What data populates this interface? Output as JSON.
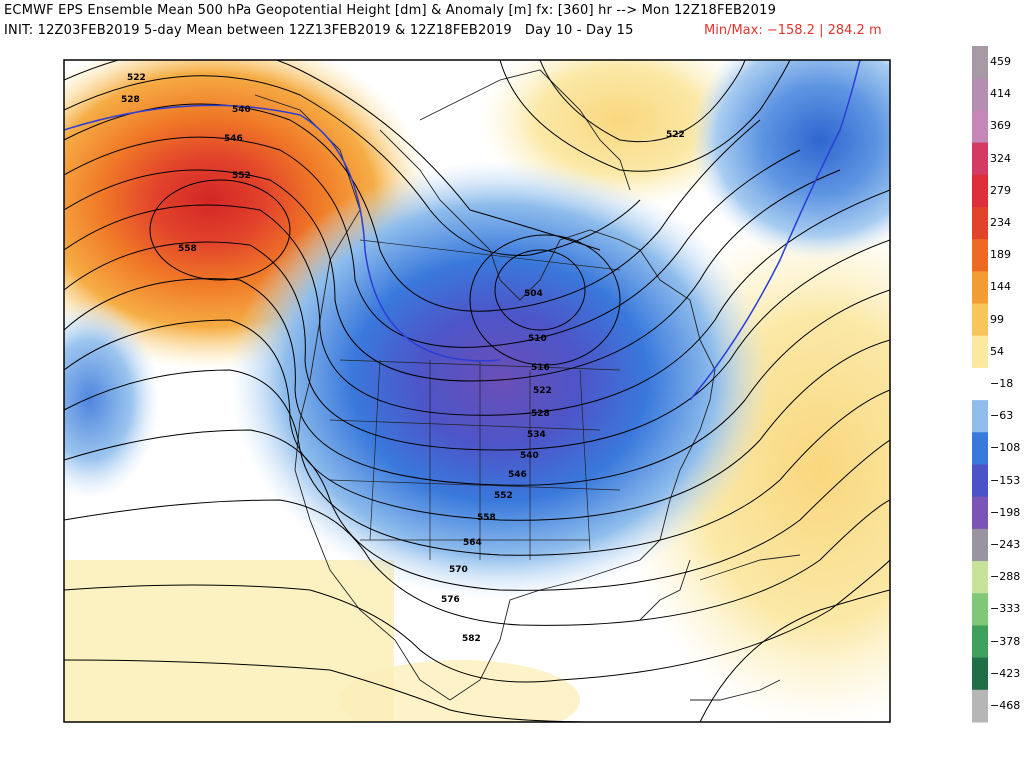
{
  "header": {
    "line1": "ECMWF EPS Ensemble Mean 500 hPa Geopotential Height [dm] & Anomaly [m] fx: [360] hr --> Mon 12Z18FEB2019",
    "line2": "INIT: 12Z03FEB2019 5-day Mean between 12Z13FEB2019 & 12Z18FEB2019   Day 10 - Day 15",
    "minmax": "Min/Max: −158.2 | 284.2 m"
  },
  "colorbar": {
    "labels": [
      "459",
      "414",
      "369",
      "324",
      "279",
      "234",
      "189",
      "144",
      "99",
      "54",
      "−18",
      "−63",
      "−108",
      "−153",
      "−198",
      "−243",
      "−288",
      "−333",
      "−378",
      "−423",
      "−468"
    ],
    "colors": [
      "#a79aa6",
      "#b58fb3",
      "#c586b8",
      "#d33b63",
      "#de2f3a",
      "#e2432b",
      "#ee6a24",
      "#f49c34",
      "#f8c45c",
      "#fbe9a0",
      "#ffffff",
      "#8fbdec",
      "#3a79dc",
      "#4a54c6",
      "#7b54b6",
      "#9a93a2",
      "#c7e39a",
      "#80c878",
      "#3f9f5c",
      "#1f6e47",
      "#b6b6b6"
    ]
  },
  "map": {
    "contour_labels": [
      {
        "text": "522"
      },
      {
        "text": "528"
      },
      {
        "text": "540"
      },
      {
        "text": "546"
      },
      {
        "text": "552"
      },
      {
        "text": "558"
      },
      {
        "text": "504"
      },
      {
        "text": "510"
      },
      {
        "text": "516"
      },
      {
        "text": "522"
      },
      {
        "text": "528"
      },
      {
        "text": "534"
      },
      {
        "text": "540"
      },
      {
        "text": "546"
      },
      {
        "text": "552"
      },
      {
        "text": "558"
      },
      {
        "text": "564"
      },
      {
        "text": "570"
      },
      {
        "text": "576"
      },
      {
        "text": "582"
      },
      {
        "text": "522"
      }
    ]
  }
}
